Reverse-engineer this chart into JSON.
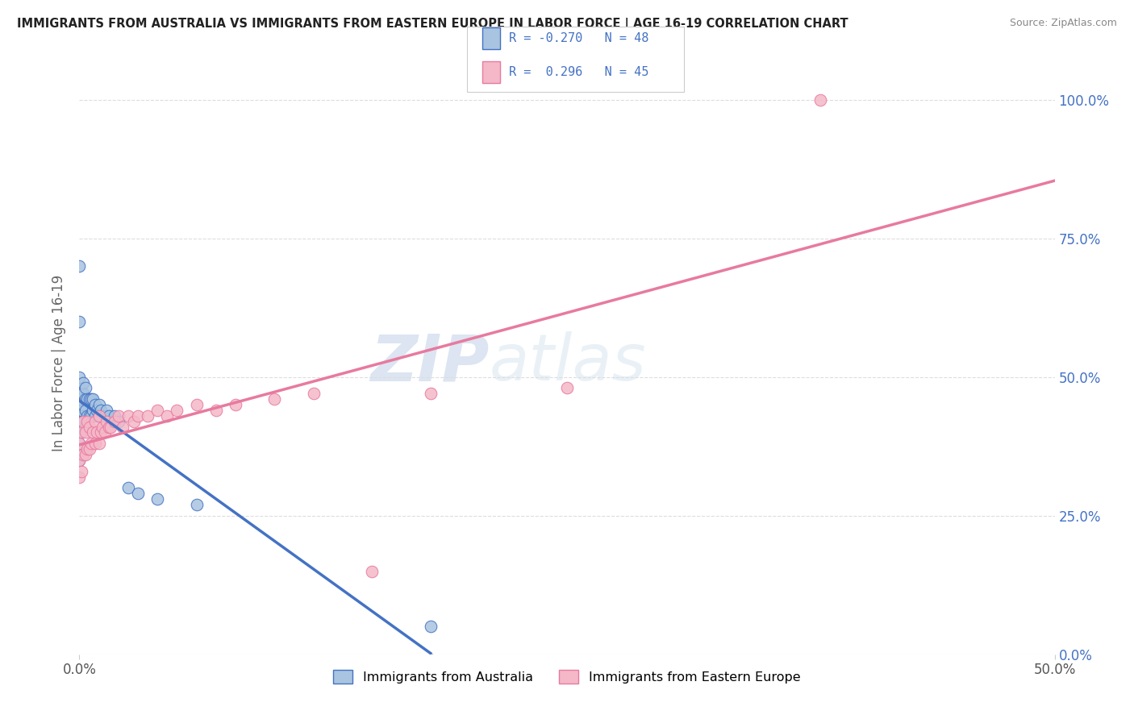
{
  "title": "IMMIGRANTS FROM AUSTRALIA VS IMMIGRANTS FROM EASTERN EUROPE IN LABOR FORCE | AGE 16-19 CORRELATION CHART",
  "source": "Source: ZipAtlas.com",
  "ylabel": "In Labor Force | Age 16-19",
  "xlim": [
    0.0,
    0.5
  ],
  "ylim": [
    0.0,
    1.05
  ],
  "ytick_vals": [
    0.0,
    0.25,
    0.5,
    0.75,
    1.0
  ],
  "color_blue_fill": "#a8c4e0",
  "color_pink_fill": "#f4b8c8",
  "color_blue_edge": "#4472c4",
  "color_pink_edge": "#e87a9f",
  "color_blue_text": "#4472c4",
  "color_line_blue": "#4472c4",
  "color_line_pink": "#e87a9f",
  "color_dashed": "#b8b8b8",
  "legend_label1": "Immigrants from Australia",
  "legend_label2": "Immigrants from Eastern Europe",
  "watermark1": "ZIP",
  "watermark2": "atlas",
  "background_color": "#ffffff",
  "grid_color": "#dddddd",
  "aus_x": [
    0.0,
    0.0,
    0.0,
    0.0,
    0.0,
    0.0,
    0.0,
    0.0,
    0.0,
    0.0,
    0.0,
    0.0,
    0.001,
    0.001,
    0.001,
    0.002,
    0.002,
    0.002,
    0.002,
    0.003,
    0.003,
    0.003,
    0.003,
    0.004,
    0.004,
    0.005,
    0.005,
    0.006,
    0.006,
    0.007,
    0.007,
    0.008,
    0.008,
    0.009,
    0.01,
    0.01,
    0.011,
    0.012,
    0.013,
    0.014,
    0.015,
    0.018,
    0.02,
    0.025,
    0.03,
    0.04,
    0.06,
    0.18
  ],
  "aus_y": [
    0.35,
    0.38,
    0.4,
    0.42,
    0.44,
    0.45,
    0.46,
    0.47,
    0.48,
    0.5,
    0.6,
    0.7,
    0.4,
    0.44,
    0.47,
    0.42,
    0.45,
    0.47,
    0.49,
    0.41,
    0.44,
    0.46,
    0.48,
    0.43,
    0.46,
    0.43,
    0.46,
    0.43,
    0.46,
    0.44,
    0.46,
    0.43,
    0.45,
    0.44,
    0.43,
    0.45,
    0.44,
    0.43,
    0.43,
    0.44,
    0.43,
    0.43,
    0.42,
    0.3,
    0.29,
    0.28,
    0.27,
    0.05
  ],
  "ee_x": [
    0.0,
    0.0,
    0.0,
    0.001,
    0.001,
    0.002,
    0.002,
    0.003,
    0.003,
    0.004,
    0.004,
    0.005,
    0.005,
    0.006,
    0.007,
    0.008,
    0.008,
    0.009,
    0.01,
    0.01,
    0.011,
    0.012,
    0.013,
    0.014,
    0.015,
    0.016,
    0.018,
    0.02,
    0.022,
    0.025,
    0.028,
    0.03,
    0.035,
    0.04,
    0.045,
    0.05,
    0.06,
    0.07,
    0.08,
    0.1,
    0.12,
    0.15,
    0.18,
    0.25,
    0.38
  ],
  "ee_y": [
    0.32,
    0.35,
    0.38,
    0.33,
    0.4,
    0.36,
    0.42,
    0.36,
    0.4,
    0.37,
    0.42,
    0.37,
    0.41,
    0.38,
    0.4,
    0.38,
    0.42,
    0.4,
    0.38,
    0.43,
    0.4,
    0.41,
    0.4,
    0.42,
    0.41,
    0.41,
    0.42,
    0.43,
    0.41,
    0.43,
    0.42,
    0.43,
    0.43,
    0.44,
    0.43,
    0.44,
    0.45,
    0.44,
    0.45,
    0.46,
    0.47,
    0.15,
    0.47,
    0.48,
    1.0
  ]
}
